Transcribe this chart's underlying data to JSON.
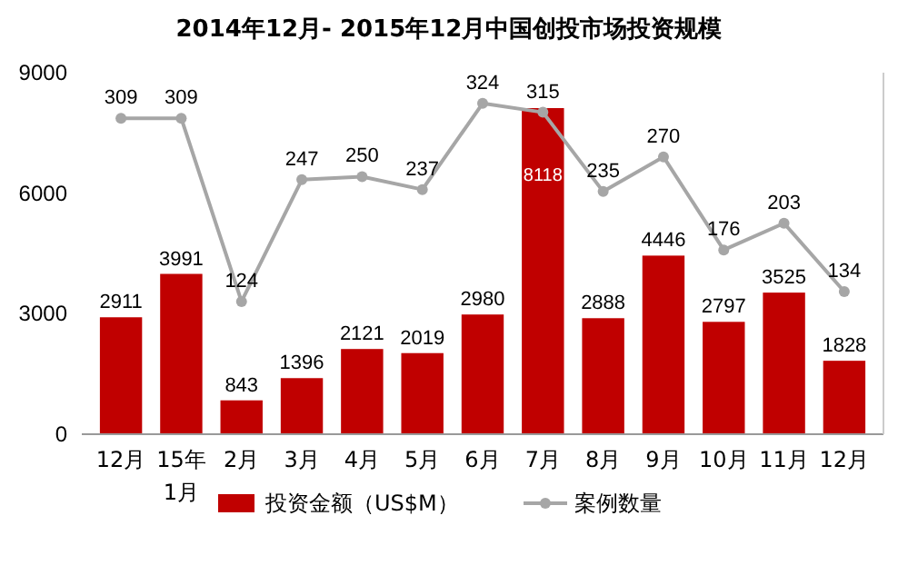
{
  "chart_data": {
    "type": "bar",
    "title": "2014年12月- 2015年12月中国创投市场投资规模",
    "categories": [
      "12月",
      "15年 1月",
      "2月",
      "3月",
      "4月",
      "5月",
      "6月",
      "7月",
      "8月",
      "9月",
      "10月",
      "11月",
      "12月"
    ],
    "series": [
      {
        "name": "投资金额（US$M）",
        "color": "#c00000",
        "values": [
          2911,
          3991,
          843,
          1396,
          2121,
          2019,
          2980,
          8118,
          2888,
          4446,
          2797,
          3525,
          1828
        ]
      },
      {
        "name": "案例数量",
        "type": "line",
        "axis": "y2",
        "color": "#a6a6a6",
        "marker": "circle",
        "values": [
          309,
          309,
          124,
          247,
          250,
          237,
          324,
          315,
          235,
          270,
          176,
          203,
          134
        ]
      }
    ],
    "ylim": [
      0,
      9000
    ],
    "yticks": [
      0,
      3000,
      6000,
      9000
    ],
    "y2lim": [
      -10,
      355
    ],
    "data_labels": true,
    "grid": false,
    "legend": "bottom"
  }
}
